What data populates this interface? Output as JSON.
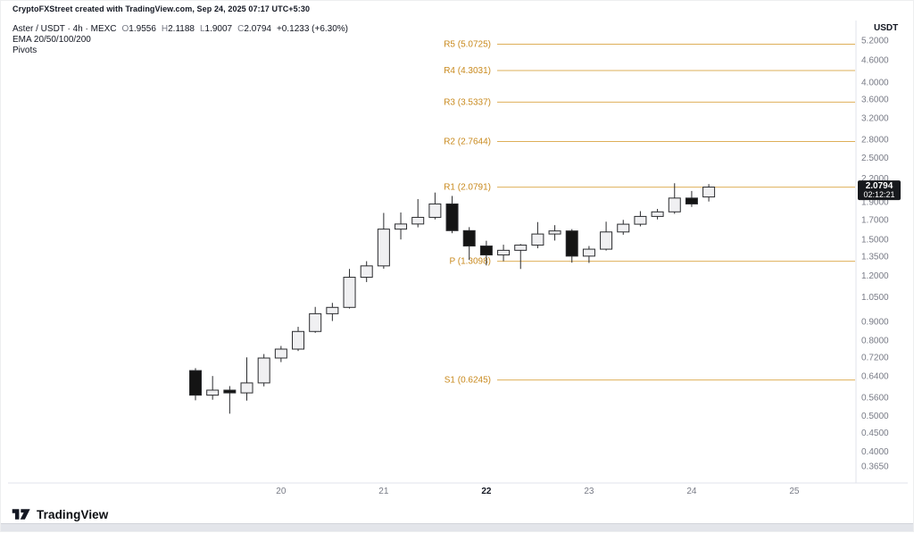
{
  "attribution": "CryptoFXStreet created with TradingView.com, Sep 24, 2025 07:17 UTC+5:30",
  "legend": {
    "title": "Aster / USDT · 4h · MEXC",
    "ohlc": {
      "o_label": "O",
      "o": "1.9556",
      "h_label": "H",
      "h": "2.1188",
      "l_label": "L",
      "l": "1.9007",
      "c_label": "C",
      "c": "2.0794",
      "change": "+0.1233 (+6.30%)"
    },
    "indicators": [
      "EMA 20/50/100/200",
      "Pivots"
    ]
  },
  "price_axis": {
    "currency": "USDT",
    "ticks": [
      "5.2000",
      "4.6000",
      "4.0000",
      "3.6000",
      "3.2000",
      "2.8000",
      "2.5000",
      "2.2000",
      "1.9000",
      "1.7000",
      "1.5000",
      "1.3500",
      "1.2000",
      "1.0500",
      "0.9000",
      "0.8000",
      "0.7200",
      "0.6400",
      "0.5600",
      "0.5000",
      "0.4500",
      "0.4000",
      "0.3650"
    ],
    "current_price": "2.0794",
    "countdown": "02:12:21"
  },
  "time_axis": {
    "labels": [
      {
        "text": "20",
        "bold": false
      },
      {
        "text": "21",
        "bold": false
      },
      {
        "text": "22",
        "bold": true
      },
      {
        "text": "23",
        "bold": false
      },
      {
        "text": "24",
        "bold": false
      },
      {
        "text": "25",
        "bold": false
      }
    ]
  },
  "footer": {
    "brand": "TradingView"
  },
  "chart_data": {
    "type": "candlestick",
    "symbol": "Aster / USDT",
    "interval": "4h",
    "exchange": "MEXC",
    "scale": "log",
    "title": "Aster / USDT · 4h · MEXC",
    "ylim": [
      0.365,
      5.2
    ],
    "grid": false,
    "last_candle": {
      "o": 1.9556,
      "h": 2.1188,
      "l": 1.9007,
      "c": 2.0794,
      "change": "+0.1233 (+6.30%)"
    },
    "current": {
      "price": 2.0794,
      "countdown": "02:12:21"
    },
    "pivots": [
      {
        "id": "r5",
        "label": "R5 (5.0725)",
        "value": 5.0725
      },
      {
        "id": "r4",
        "label": "R4 (4.3031)",
        "value": 4.3031
      },
      {
        "id": "r3",
        "label": "R3 (3.5337)",
        "value": 3.5337
      },
      {
        "id": "r2",
        "label": "R2 (2.7644)",
        "value": 2.7644
      },
      {
        "id": "r1",
        "label": "R1 (2.0791)",
        "value": 2.0791
      },
      {
        "id": "p",
        "label": "P (1.3098)",
        "value": 1.3098
      },
      {
        "id": "s1",
        "label": "S1 (0.6245)",
        "value": 0.6245
      }
    ],
    "y_ticks": [
      5.2,
      4.6,
      4.0,
      3.6,
      3.2,
      2.8,
      2.5,
      2.2,
      1.9,
      1.7,
      1.5,
      1.35,
      1.2,
      1.05,
      0.9,
      0.8,
      0.72,
      0.64,
      0.56,
      0.5,
      0.45,
      0.4,
      0.365
    ],
    "x_ticks": [
      "20",
      "21",
      "22",
      "23",
      "24",
      "25"
    ],
    "candles": [
      {
        "o": 0.662,
        "h": 0.672,
        "l": 0.55,
        "c": 0.568
      },
      {
        "o": 0.568,
        "h": 0.64,
        "l": 0.552,
        "c": 0.586
      },
      {
        "o": 0.586,
        "h": 0.601,
        "l": 0.506,
        "c": 0.576
      },
      {
        "o": 0.576,
        "h": 0.719,
        "l": 0.549,
        "c": 0.613
      },
      {
        "o": 0.613,
        "h": 0.734,
        "l": 0.6,
        "c": 0.716
      },
      {
        "o": 0.716,
        "h": 0.772,
        "l": 0.698,
        "c": 0.757
      },
      {
        "o": 0.757,
        "h": 0.87,
        "l": 0.748,
        "c": 0.845
      },
      {
        "o": 0.845,
        "h": 0.985,
        "l": 0.838,
        "c": 0.944
      },
      {
        "o": 0.944,
        "h": 1.01,
        "l": 0.902,
        "c": 0.982
      },
      {
        "o": 0.982,
        "h": 1.248,
        "l": 0.975,
        "c": 1.185
      },
      {
        "o": 1.185,
        "h": 1.31,
        "l": 1.15,
        "c": 1.272
      },
      {
        "o": 1.272,
        "h": 1.77,
        "l": 1.25,
        "c": 1.6
      },
      {
        "o": 1.6,
        "h": 1.775,
        "l": 1.5,
        "c": 1.652
      },
      {
        "o": 1.652,
        "h": 1.93,
        "l": 1.618,
        "c": 1.722
      },
      {
        "o": 1.722,
        "h": 2.01,
        "l": 1.7,
        "c": 1.872
      },
      {
        "o": 1.872,
        "h": 1.968,
        "l": 1.56,
        "c": 1.585
      },
      {
        "o": 1.585,
        "h": 1.62,
        "l": 1.32,
        "c": 1.44
      },
      {
        "o": 1.44,
        "h": 1.488,
        "l": 1.276,
        "c": 1.362
      },
      {
        "o": 1.362,
        "h": 1.452,
        "l": 1.31,
        "c": 1.402
      },
      {
        "o": 1.402,
        "h": 1.458,
        "l": 1.248,
        "c": 1.448
      },
      {
        "o": 1.448,
        "h": 1.672,
        "l": 1.42,
        "c": 1.552
      },
      {
        "o": 1.552,
        "h": 1.64,
        "l": 1.49,
        "c": 1.582
      },
      {
        "o": 1.582,
        "h": 1.6,
        "l": 1.298,
        "c": 1.352
      },
      {
        "o": 1.352,
        "h": 1.44,
        "l": 1.296,
        "c": 1.412
      },
      {
        "o": 1.412,
        "h": 1.676,
        "l": 1.4,
        "c": 1.572
      },
      {
        "o": 1.572,
        "h": 1.695,
        "l": 1.545,
        "c": 1.65
      },
      {
        "o": 1.65,
        "h": 1.79,
        "l": 1.628,
        "c": 1.732
      },
      {
        "o": 1.732,
        "h": 1.815,
        "l": 1.7,
        "c": 1.782
      },
      {
        "o": 1.782,
        "h": 2.13,
        "l": 1.76,
        "c": 1.942
      },
      {
        "o": 1.942,
        "h": 2.03,
        "l": 1.838,
        "c": 1.872
      },
      {
        "o": 1.9556,
        "h": 2.1188,
        "l": 1.9007,
        "c": 2.0794
      }
    ],
    "colors": {
      "up_fill": "#F0F0F2",
      "down_fill": "#141414",
      "border": "#2A2B2E",
      "pivot": "#C98A1E",
      "pivot_line": "#D9A23C",
      "axis_text": "#787B86",
      "axis_text_bold": "#131722",
      "price_label_bg": "#17191D",
      "price_label_text": "#FFFFFF",
      "separator": "#E0E3EB"
    }
  }
}
